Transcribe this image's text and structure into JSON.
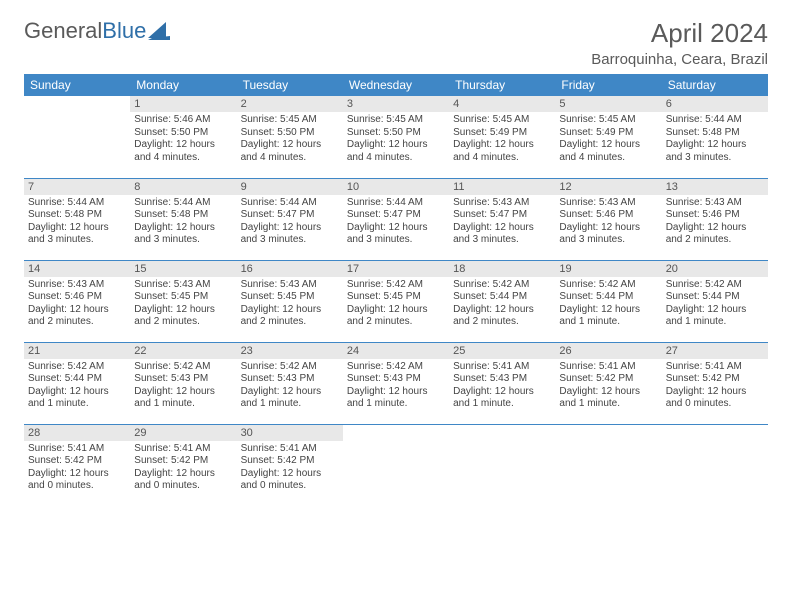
{
  "brand": {
    "part1": "General",
    "part2": "Blue"
  },
  "title": "April 2024",
  "location": "Barroquinha, Ceara, Brazil",
  "colors": {
    "header_bg": "#3f87c6",
    "header_text": "#ffffff",
    "daynum_bg": "#e8e8e8",
    "border": "#3f87c6",
    "text": "#444444",
    "title_text": "#5a5a5a"
  },
  "day_headers": [
    "Sunday",
    "Monday",
    "Tuesday",
    "Wednesday",
    "Thursday",
    "Friday",
    "Saturday"
  ],
  "weeks": [
    [
      null,
      {
        "n": "1",
        "sr": "5:46 AM",
        "ss": "5:50 PM",
        "dl": "12 hours and 4 minutes."
      },
      {
        "n": "2",
        "sr": "5:45 AM",
        "ss": "5:50 PM",
        "dl": "12 hours and 4 minutes."
      },
      {
        "n": "3",
        "sr": "5:45 AM",
        "ss": "5:50 PM",
        "dl": "12 hours and 4 minutes."
      },
      {
        "n": "4",
        "sr": "5:45 AM",
        "ss": "5:49 PM",
        "dl": "12 hours and 4 minutes."
      },
      {
        "n": "5",
        "sr": "5:45 AM",
        "ss": "5:49 PM",
        "dl": "12 hours and 4 minutes."
      },
      {
        "n": "6",
        "sr": "5:44 AM",
        "ss": "5:48 PM",
        "dl": "12 hours and 3 minutes."
      }
    ],
    [
      {
        "n": "7",
        "sr": "5:44 AM",
        "ss": "5:48 PM",
        "dl": "12 hours and 3 minutes."
      },
      {
        "n": "8",
        "sr": "5:44 AM",
        "ss": "5:48 PM",
        "dl": "12 hours and 3 minutes."
      },
      {
        "n": "9",
        "sr": "5:44 AM",
        "ss": "5:47 PM",
        "dl": "12 hours and 3 minutes."
      },
      {
        "n": "10",
        "sr": "5:44 AM",
        "ss": "5:47 PM",
        "dl": "12 hours and 3 minutes."
      },
      {
        "n": "11",
        "sr": "5:43 AM",
        "ss": "5:47 PM",
        "dl": "12 hours and 3 minutes."
      },
      {
        "n": "12",
        "sr": "5:43 AM",
        "ss": "5:46 PM",
        "dl": "12 hours and 3 minutes."
      },
      {
        "n": "13",
        "sr": "5:43 AM",
        "ss": "5:46 PM",
        "dl": "12 hours and 2 minutes."
      }
    ],
    [
      {
        "n": "14",
        "sr": "5:43 AM",
        "ss": "5:46 PM",
        "dl": "12 hours and 2 minutes."
      },
      {
        "n": "15",
        "sr": "5:43 AM",
        "ss": "5:45 PM",
        "dl": "12 hours and 2 minutes."
      },
      {
        "n": "16",
        "sr": "5:43 AM",
        "ss": "5:45 PM",
        "dl": "12 hours and 2 minutes."
      },
      {
        "n": "17",
        "sr": "5:42 AM",
        "ss": "5:45 PM",
        "dl": "12 hours and 2 minutes."
      },
      {
        "n": "18",
        "sr": "5:42 AM",
        "ss": "5:44 PM",
        "dl": "12 hours and 2 minutes."
      },
      {
        "n": "19",
        "sr": "5:42 AM",
        "ss": "5:44 PM",
        "dl": "12 hours and 1 minute."
      },
      {
        "n": "20",
        "sr": "5:42 AM",
        "ss": "5:44 PM",
        "dl": "12 hours and 1 minute."
      }
    ],
    [
      {
        "n": "21",
        "sr": "5:42 AM",
        "ss": "5:44 PM",
        "dl": "12 hours and 1 minute."
      },
      {
        "n": "22",
        "sr": "5:42 AM",
        "ss": "5:43 PM",
        "dl": "12 hours and 1 minute."
      },
      {
        "n": "23",
        "sr": "5:42 AM",
        "ss": "5:43 PM",
        "dl": "12 hours and 1 minute."
      },
      {
        "n": "24",
        "sr": "5:42 AM",
        "ss": "5:43 PM",
        "dl": "12 hours and 1 minute."
      },
      {
        "n": "25",
        "sr": "5:41 AM",
        "ss": "5:43 PM",
        "dl": "12 hours and 1 minute."
      },
      {
        "n": "26",
        "sr": "5:41 AM",
        "ss": "5:42 PM",
        "dl": "12 hours and 1 minute."
      },
      {
        "n": "27",
        "sr": "5:41 AM",
        "ss": "5:42 PM",
        "dl": "12 hours and 0 minutes."
      }
    ],
    [
      {
        "n": "28",
        "sr": "5:41 AM",
        "ss": "5:42 PM",
        "dl": "12 hours and 0 minutes."
      },
      {
        "n": "29",
        "sr": "5:41 AM",
        "ss": "5:42 PM",
        "dl": "12 hours and 0 minutes."
      },
      {
        "n": "30",
        "sr": "5:41 AM",
        "ss": "5:42 PM",
        "dl": "12 hours and 0 minutes."
      },
      null,
      null,
      null,
      null
    ]
  ],
  "labels": {
    "sunrise": "Sunrise:",
    "sunset": "Sunset:",
    "daylight": "Daylight:"
  }
}
